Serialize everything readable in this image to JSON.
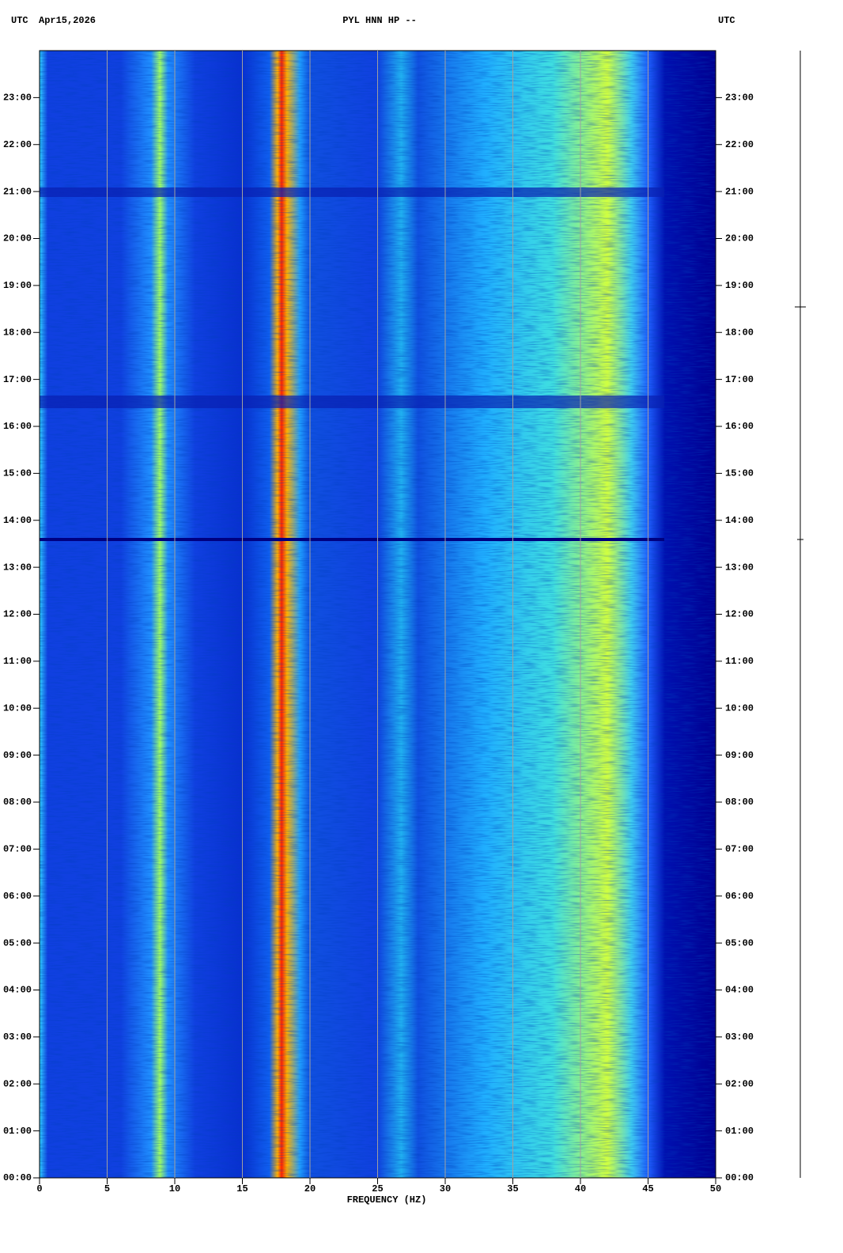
{
  "chart_data": {
    "type": "spectrogram",
    "header_left": "UTC",
    "date": "Apr15,2026",
    "title": "PYL HNN HP --",
    "header_right": "UTC",
    "x_label": "FREQUENCY (HZ)",
    "xlim": [
      0,
      50
    ],
    "xticks": [
      0,
      5,
      10,
      15,
      20,
      25,
      30,
      35,
      40,
      45,
      50
    ],
    "ylim": [
      0,
      24
    ],
    "yticks": [
      {
        "value": 0,
        "label": "00:00"
      },
      {
        "value": 1,
        "label": "01:00"
      },
      {
        "value": 2,
        "label": "02:00"
      },
      {
        "value": 3,
        "label": "03:00"
      },
      {
        "value": 4,
        "label": "04:00"
      },
      {
        "value": 5,
        "label": "05:00"
      },
      {
        "value": 6,
        "label": "06:00"
      },
      {
        "value": 7,
        "label": "07:00"
      },
      {
        "value": 8,
        "label": "08:00"
      },
      {
        "value": 9,
        "label": "09:00"
      },
      {
        "value": 10,
        "label": "10:00"
      },
      {
        "value": 11,
        "label": "11:00"
      },
      {
        "value": 12,
        "label": "12:00"
      },
      {
        "value": 13,
        "label": "13:00"
      },
      {
        "value": 14,
        "label": "14:00"
      },
      {
        "value": 15,
        "label": "15:00"
      },
      {
        "value": 16,
        "label": "16:00"
      },
      {
        "value": 17,
        "label": "17:00"
      },
      {
        "value": 18,
        "label": "18:00"
      },
      {
        "value": 19,
        "label": "19:00"
      },
      {
        "value": 20,
        "label": "20:00"
      },
      {
        "value": 21,
        "label": "21:00"
      },
      {
        "value": 22,
        "label": "22:00"
      },
      {
        "value": 23,
        "label": "23:00"
      }
    ],
    "grid": true
  }
}
